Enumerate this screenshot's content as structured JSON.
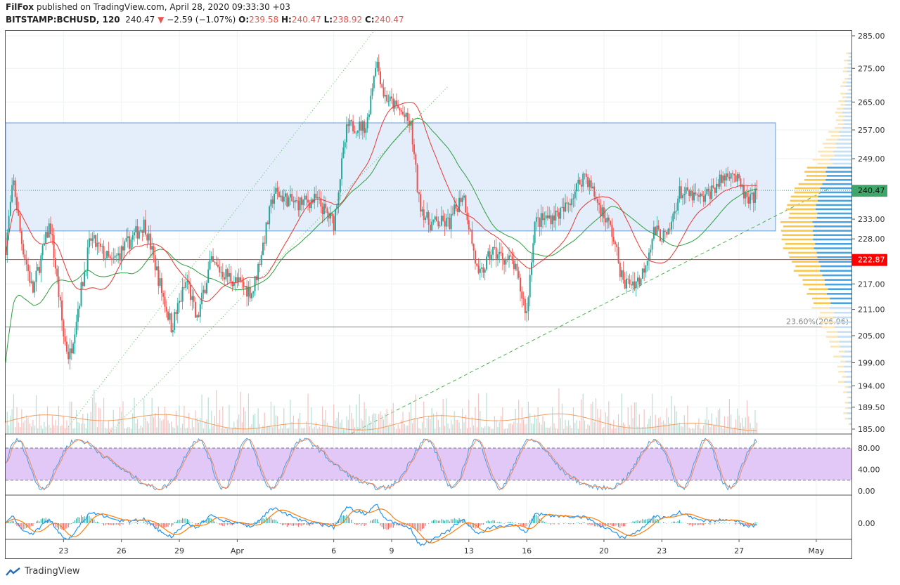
{
  "header": {
    "author": "FilFox",
    "published": "published on TradingView.com, April 28, 2020 09:33:30 +03",
    "symbol": "BITSTAMP:BCHUSD, 120",
    "last": "240.47",
    "change": "−2.59 (−1.07%)",
    "o_label": "O:",
    "o": "239.58",
    "h_label": "H:",
    "h": "240.47",
    "l_label": "L:",
    "l": "238.92",
    "c_label": "C:",
    "c": "240.47"
  },
  "footer": {
    "brand": "TradingView"
  },
  "colors": {
    "up": "#26a69a",
    "down": "#ef5350",
    "box": "#e3eefa",
    "ma_fast": "#e53935",
    "ma_slow": "#2e9e3e",
    "stoch_band": "#e1c8f7",
    "last_price_bg": "#3fa66a",
    "level_bg": "#ff0000"
  },
  "chart_data": {
    "type": "candlestick",
    "title": "BITSTAMP:BCHUSD, 120",
    "xlabel": "",
    "ylabel": "",
    "x_unit": "days since Mar 20, 2020",
    "price_ticks": [
      "285.00",
      "275.00",
      "265.00",
      "257.00",
      "249.00",
      "233.00",
      "228.00",
      "217.00",
      "211.00",
      "205.00",
      "199.00",
      "194.00",
      "189.50",
      "185.00"
    ],
    "price_tick_values": [
      285,
      275,
      265,
      257,
      249,
      233,
      228,
      217,
      211,
      205,
      199,
      194,
      189.5,
      185
    ],
    "time_ticks": [
      {
        "label": "23",
        "day": 3
      },
      {
        "label": "26",
        "day": 6
      },
      {
        "label": "29",
        "day": 9
      },
      {
        "label": "Apr",
        "day": 12
      },
      {
        "label": "6",
        "day": 17
      },
      {
        "label": "9",
        "day": 20
      },
      {
        "label": "13",
        "day": 24
      },
      {
        "label": "16",
        "day": 27
      },
      {
        "label": "20",
        "day": 31
      },
      {
        "label": "23",
        "day": 34
      },
      {
        "label": "27",
        "day": 38
      },
      {
        "label": "May",
        "day": 42
      }
    ],
    "close_path": [
      [
        0,
        226
      ],
      [
        0.4,
        243
      ],
      [
        0.8,
        228
      ],
      [
        1.4,
        215
      ],
      [
        2.3,
        232
      ],
      [
        3.0,
        205
      ],
      [
        3.3,
        200
      ],
      [
        4.4,
        228
      ],
      [
        5.5,
        222
      ],
      [
        7.2,
        232
      ],
      [
        8.1,
        215
      ],
      [
        8.6,
        207
      ],
      [
        9.4,
        218
      ],
      [
        9.9,
        208
      ],
      [
        10.6,
        222
      ],
      [
        12.1,
        217
      ],
      [
        12.8,
        215
      ],
      [
        13.4,
        228
      ],
      [
        13.9,
        240
      ],
      [
        15.0,
        237
      ],
      [
        16.1,
        238
      ],
      [
        17.0,
        232
      ],
      [
        17.7,
        258
      ],
      [
        18.7,
        258
      ],
      [
        19.2,
        278
      ],
      [
        19.6,
        267
      ],
      [
        20.5,
        262
      ],
      [
        21.0,
        258
      ],
      [
        21.4,
        238
      ],
      [
        21.9,
        232
      ],
      [
        23.0,
        232
      ],
      [
        23.7,
        240
      ],
      [
        24.5,
        218
      ],
      [
        25.2,
        225
      ],
      [
        26.3,
        222
      ],
      [
        27.0,
        210
      ],
      [
        27.4,
        232
      ],
      [
        28.9,
        235
      ],
      [
        30.0,
        245
      ],
      [
        30.7,
        237
      ],
      [
        31.4,
        230
      ],
      [
        32.0,
        217
      ],
      [
        32.9,
        218
      ],
      [
        33.6,
        230
      ],
      [
        34.3,
        228
      ],
      [
        34.9,
        240
      ],
      [
        36.1,
        238
      ],
      [
        37.6,
        246
      ],
      [
        38.5,
        237
      ],
      [
        39.0,
        240.47
      ]
    ],
    "last_price": {
      "label": "240.47",
      "value": 240.47
    },
    "support_level": {
      "label": "222.87",
      "value": 222.87
    },
    "range_box": {
      "top": 259,
      "bottom": 230
    },
    "fib": {
      "label": "23.60%(206.96)",
      "value": 206.96
    },
    "stoch": {
      "ticks": [
        "80.00",
        "40.00",
        "0.00"
      ],
      "upper": 80,
      "lower": 20
    },
    "macd": {
      "ticks": [
        "0.00"
      ]
    }
  }
}
